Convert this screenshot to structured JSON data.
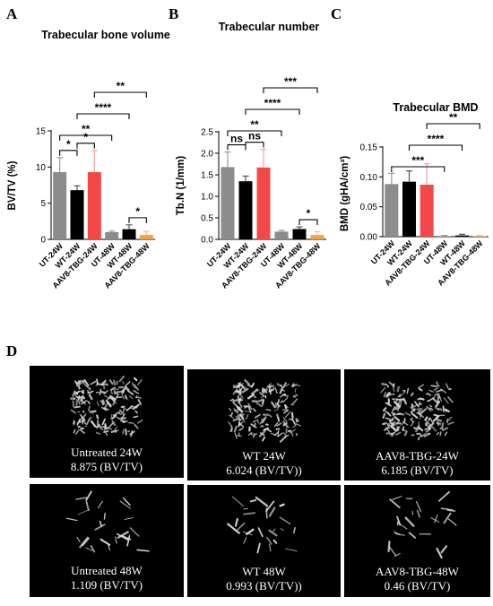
{
  "panel_labels": {
    "a": "A",
    "b": "B",
    "c": "C",
    "d": "D"
  },
  "colors": {
    "UT": "#8c8c8c",
    "WT": "#000000",
    "AAV8": "#f24848",
    "AAV8_48": "#f5a043",
    "error_gray": "#9a9a9a",
    "error_black": "#555555",
    "error_red": "#f6a0a0",
    "error_orange": "#f6c28a"
  },
  "chart_data": [
    {
      "type": "bar",
      "title": "Trabecular bone volume",
      "ylabel": "BV/TV (%)",
      "ylim": [
        0,
        15
      ],
      "yticks": [
        "0",
        "5",
        "10",
        "15"
      ],
      "categories": [
        "UT-24W",
        "WT-24W",
        "AAV8-TBG-24W",
        "UT-48W",
        "WT-48W",
        "AAV8-TBG-48W"
      ],
      "values": [
        9.3,
        6.8,
        9.3,
        1.0,
        1.4,
        0.6
      ],
      "errors": [
        2.0,
        0.6,
        3.0,
        0.15,
        0.6,
        0.5
      ],
      "bar_colors": [
        "#8c8c8c",
        "#000000",
        "#f24848",
        "#8c8c8c",
        "#000000",
        "#f5a043"
      ],
      "significance": [
        {
          "from": 0,
          "to": 1,
          "label": "*"
        },
        {
          "from": 1,
          "to": 2,
          "label": "*"
        },
        {
          "from": 4,
          "to": 5,
          "label": "*"
        },
        {
          "from": 0,
          "to": 3,
          "label": "**"
        },
        {
          "from": 1,
          "to": 4,
          "label": "****"
        },
        {
          "from": 2,
          "to": 5,
          "label": "**"
        }
      ]
    },
    {
      "type": "bar",
      "title": "Trabecular number",
      "ylabel": "Tb.N (1/mm)",
      "ylim": [
        0,
        2.5
      ],
      "yticks": [
        "0.0",
        "0.5",
        "1.0",
        "1.5",
        "2.0",
        "2.5"
      ],
      "categories": [
        "UT-24W",
        "WT-24W",
        "AAV8-TBG-24W",
        "UT-48W",
        "WT-48W",
        "AAV8-TBG-48W"
      ],
      "values": [
        1.68,
        1.35,
        1.67,
        0.18,
        0.24,
        0.1
      ],
      "errors": [
        0.35,
        0.12,
        0.42,
        0.03,
        0.05,
        0.08
      ],
      "bar_colors": [
        "#8c8c8c",
        "#000000",
        "#f24848",
        "#8c8c8c",
        "#000000",
        "#f5a043"
      ],
      "significance": [
        {
          "from": 0,
          "to": 1,
          "label": "ns"
        },
        {
          "from": 1,
          "to": 2,
          "label": "ns"
        },
        {
          "from": 4,
          "to": 5,
          "label": "*"
        },
        {
          "from": 0,
          "to": 3,
          "label": "**"
        },
        {
          "from": 1,
          "to": 4,
          "label": "****"
        },
        {
          "from": 2,
          "to": 5,
          "label": "***"
        }
      ]
    },
    {
      "type": "bar",
      "title": "Trabecular BMD",
      "ylabel": "BMD (gHA/cm³)",
      "ylim": [
        0,
        0.15
      ],
      "yticks": [
        "0.00",
        "0.05",
        "0.10",
        "0.15"
      ],
      "categories": [
        "UT-24W",
        "WT-24W",
        "AAV8-TBG-24W",
        "UT-48W",
        "WT-48W",
        "AAV8-TBG-48W"
      ],
      "values": [
        0.088,
        0.092,
        0.087,
        0.001,
        0.002,
        0.001
      ],
      "errors": [
        0.018,
        0.018,
        0.035,
        0.001,
        0.002,
        0.001
      ],
      "bar_colors": [
        "#8c8c8c",
        "#000000",
        "#f24848",
        "#8c8c8c",
        "#000000",
        "#f5a043"
      ],
      "significance": [
        {
          "from": 0,
          "to": 3,
          "label": "***"
        },
        {
          "from": 1,
          "to": 4,
          "label": "****"
        },
        {
          "from": 2,
          "to": 5,
          "label": "**"
        }
      ]
    }
  ],
  "micro_ct_images": [
    {
      "line1": "Untreated 24W",
      "line2": "8.875 (BV/TV)",
      "density": "dense"
    },
    {
      "line1": "WT 24W",
      "line2": "6.024 (BV/TV))",
      "density": "dense"
    },
    {
      "line1": "AAV8-TBG-24W",
      "line2": "6.185 (BV/TV)",
      "density": "dense"
    },
    {
      "line1": "Untreated 48W",
      "line2": "1.109 (BV/TV)",
      "density": "sparse"
    },
    {
      "line1": "WT 48W",
      "line2": "0.993 (BV/TV))",
      "density": "sparse"
    },
    {
      "line1": "AAV8-TBG-48W",
      "line2": "0.46 (BV/TV)",
      "density": "sparse"
    }
  ]
}
